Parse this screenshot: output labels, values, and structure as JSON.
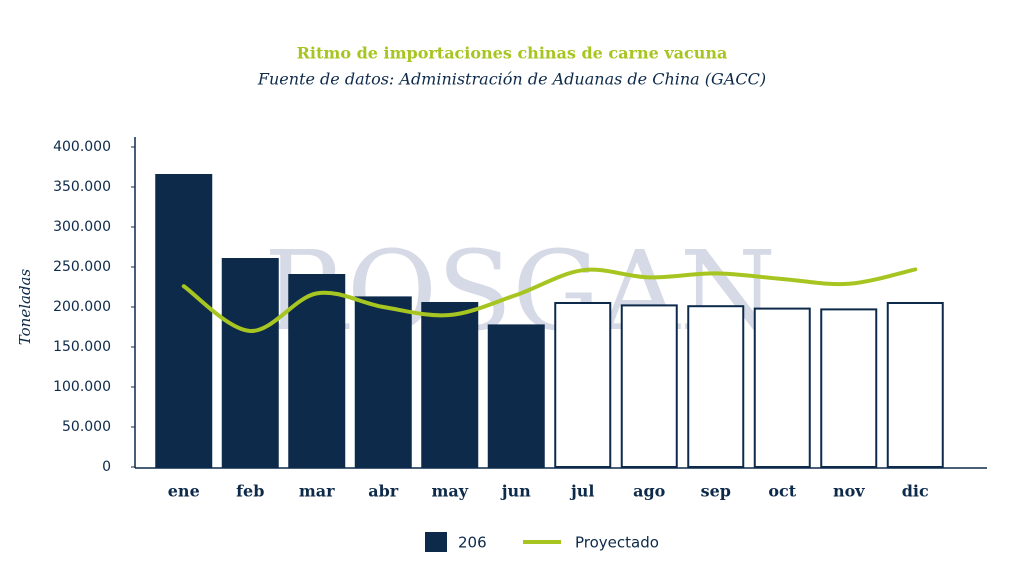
{
  "chart_data": {
    "type": "bar",
    "title": "Ritmo de importaciones chinas de carne vacuna",
    "subtitle": "Fuente de datos: Administración de Aduanas de China (GACC)",
    "watermark": "ROSGAN",
    "y_label": "Toneladas",
    "categories": [
      "ene",
      "feb",
      "mar",
      "abr",
      "may",
      "jun",
      "jul",
      "ago",
      "sep",
      "oct",
      "nov",
      "dic"
    ],
    "series": [
      {
        "name": "206",
        "type": "bar",
        "color": "#0d2a4a",
        "bar_fills": [
          "#0d2a4a",
          "#0d2a4a",
          "#0d2a4a",
          "#0d2a4a",
          "#0d2a4a",
          "#0d2a4a",
          "#ffffff",
          "#ffffff",
          "#ffffff",
          "#ffffff",
          "#ffffff",
          "#ffffff"
        ],
        "values": [
          365000,
          260000,
          240000,
          212000,
          205000,
          177000,
          205000,
          202000,
          201000,
          198000,
          197000,
          205000
        ]
      },
      {
        "name": "Proyectado",
        "type": "line",
        "color": "#a7c520",
        "values": [
          226000,
          170000,
          217000,
          200000,
          190000,
          215000,
          246000,
          237000,
          242000,
          235000,
          229000,
          247000
        ]
      }
    ],
    "ylim": [
      0,
      400000
    ],
    "yticks": [
      0,
      {
        "value": 50000,
        "label": "50.000"
      },
      {
        "value": 100000,
        "label": "100.000"
      },
      {
        "value": 150000,
        "label": "150.000"
      },
      {
        "value": 200000,
        "label": "200.000"
      },
      {
        "value": 250000,
        "label": "250.000"
      },
      {
        "value": 300000,
        "label": "300.000"
      },
      {
        "value": 350000,
        "label": "350.000"
      },
      {
        "value": 400000,
        "label": "400.000"
      }
    ],
    "grid": false
  }
}
